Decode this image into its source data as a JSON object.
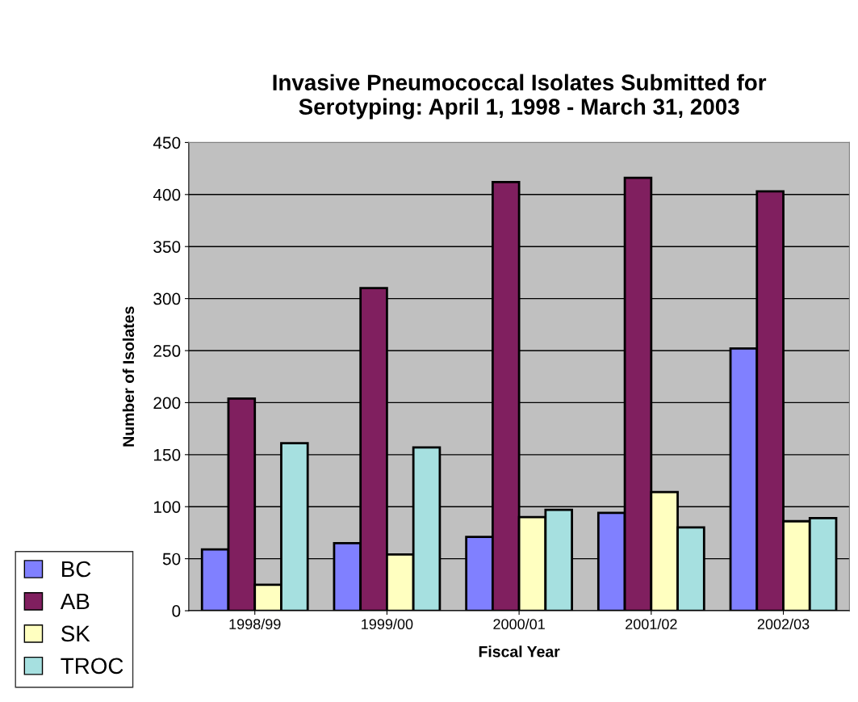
{
  "chart_data": {
    "type": "bar",
    "title": "Invasive Pneumococcal Isolates Submitted for\nSerotyping: April 1, 1998 - March 31, 2003",
    "xlabel": "Fiscal Year",
    "ylabel": "Number of Isolates",
    "categories": [
      "1998/99",
      "1999/00",
      "2000/01",
      "2001/02",
      "2002/03"
    ],
    "series": [
      {
        "name": "BC",
        "color": "#8080ff",
        "values": [
          59,
          65,
          71,
          94,
          252
        ]
      },
      {
        "name": "AB",
        "color": "#801f5f",
        "values": [
          204,
          310,
          412,
          416,
          403
        ]
      },
      {
        "name": "SK",
        "color": "#ffffc0",
        "values": [
          25,
          54,
          90,
          114,
          86
        ]
      },
      {
        "name": "TROC",
        "color": "#a6e0e0",
        "values": [
          161,
          157,
          97,
          80,
          89
        ]
      }
    ],
    "ylim": [
      0,
      450
    ],
    "yticks": [
      0,
      50,
      100,
      150,
      200,
      250,
      300,
      350,
      400,
      450
    ],
    "grid": "y",
    "legend": "bottom left"
  }
}
